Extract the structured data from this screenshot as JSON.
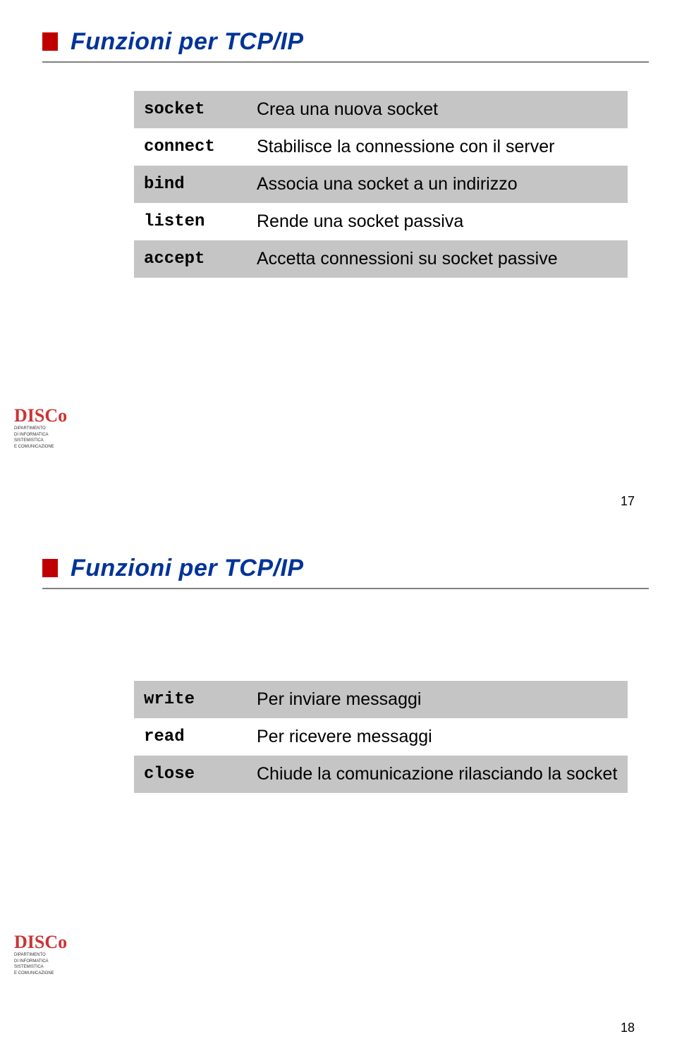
{
  "slides": [
    {
      "title": "Funzioni per TCP/IP",
      "page": "17",
      "rows": [
        {
          "key": "socket",
          "desc": "Crea una nuova socket"
        },
        {
          "key": "connect",
          "desc": "Stabilisce la connessione con il server"
        },
        {
          "key": "bind",
          "desc": "Associa una socket a un indirizzo"
        },
        {
          "key": "listen",
          "desc": "Rende una socket passiva"
        },
        {
          "key": "accept",
          "desc": "Accetta connessioni su socket passive"
        }
      ]
    },
    {
      "title": "Funzioni per TCP/IP",
      "page": "18",
      "rows": [
        {
          "key": "write",
          "desc": "Per inviare messaggi"
        },
        {
          "key": "read",
          "desc": "Per ricevere messaggi"
        },
        {
          "key": "close",
          "desc": "Chiude la comunicazione rilasciando la socket"
        }
      ]
    }
  ],
  "logo": {
    "main": "DISCo",
    "sub1": "DIPARTIMENTO",
    "sub2": "DI INFORMATICA",
    "sub3": "SISTEMISTICA",
    "sub4": "E COMUNICAZIONE"
  },
  "colors": {
    "title": "#003399",
    "redbox": "#c00000",
    "underline": "#808080",
    "shaded_row": "#c5c5c5"
  }
}
